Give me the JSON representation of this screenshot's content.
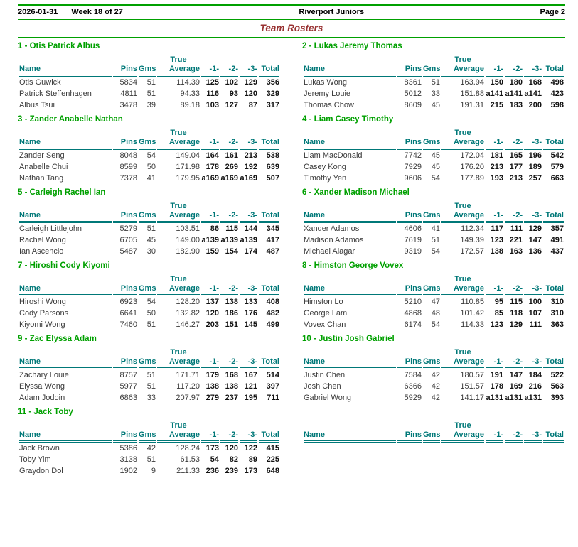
{
  "header": {
    "date": "2026-01-31",
    "week": "Week 18 of 27",
    "league": "Riverport Juniors",
    "page_label": "Page 2",
    "title": "Team Rosters"
  },
  "colors": {
    "team_green": "#00a000",
    "header_teal": "#007878",
    "title_maroon": "#993333",
    "rule_green": "#00a000",
    "score_black": "#111111",
    "body_gray": "#3a3a3a"
  },
  "columns": {
    "true_label": "True",
    "name": "Name",
    "pins": "Pins",
    "gms": "Gms",
    "average": "Average",
    "g1": "-1-",
    "g2": "-2-",
    "g3": "-3-",
    "total": "Total"
  },
  "teams": [
    {
      "title": "1 - Otis Patrick Albus",
      "players": [
        {
          "name": "Otis Guwick",
          "pins": "5834",
          "gms": "51",
          "avg": "114.39",
          "g1": "125",
          "g2": "102",
          "g3": "129",
          "total": "356"
        },
        {
          "name": "Patrick Steffenhagen",
          "pins": "4811",
          "gms": "51",
          "avg": "94.33",
          "g1": "116",
          "g2": "93",
          "g3": "120",
          "total": "329"
        },
        {
          "name": "Albus Tsui",
          "pins": "3478",
          "gms": "39",
          "avg": "89.18",
          "g1": "103",
          "g2": "127",
          "g3": "87",
          "total": "317"
        }
      ]
    },
    {
      "title": "2 - Lukas Jeremy Thomas",
      "players": [
        {
          "name": "Lukas Wong",
          "pins": "8361",
          "gms": "51",
          "avg": "163.94",
          "g1": "150",
          "g2": "180",
          "g3": "168",
          "total": "498"
        },
        {
          "name": "Jeremy Louie",
          "pins": "5012",
          "gms": "33",
          "avg": "151.88",
          "g1": "a141",
          "g2": "a141",
          "g3": "a141",
          "total": "423"
        },
        {
          "name": "Thomas Chow",
          "pins": "8609",
          "gms": "45",
          "avg": "191.31",
          "g1": "215",
          "g2": "183",
          "g3": "200",
          "total": "598"
        }
      ]
    },
    {
      "title": "3 - Zander Anabelle Nathan",
      "players": [
        {
          "name": "Zander Seng",
          "pins": "8048",
          "gms": "54",
          "avg": "149.04",
          "g1": "164",
          "g2": "161",
          "g3": "213",
          "total": "538"
        },
        {
          "name": "Anabelle Chui",
          "pins": "8599",
          "gms": "50",
          "avg": "171.98",
          "g1": "178",
          "g2": "269",
          "g3": "192",
          "total": "639"
        },
        {
          "name": "Nathan Tang",
          "pins": "7378",
          "gms": "41",
          "avg": "179.95",
          "g1": "a169",
          "g2": "a169",
          "g3": "a169",
          "total": "507"
        }
      ]
    },
    {
      "title": "4 - Liam Casey Timothy",
      "players": [
        {
          "name": "Liam MacDonald",
          "pins": "7742",
          "gms": "45",
          "avg": "172.04",
          "g1": "181",
          "g2": "165",
          "g3": "196",
          "total": "542"
        },
        {
          "name": "Casey Kong",
          "pins": "7929",
          "gms": "45",
          "avg": "176.20",
          "g1": "213",
          "g2": "177",
          "g3": "189",
          "total": "579"
        },
        {
          "name": "Timothy Yen",
          "pins": "9606",
          "gms": "54",
          "avg": "177.89",
          "g1": "193",
          "g2": "213",
          "g3": "257",
          "total": "663"
        }
      ]
    },
    {
      "title": "5 - Carleigh Rachel Ian",
      "players": [
        {
          "name": "Carleigh Littlejohn",
          "pins": "5279",
          "gms": "51",
          "avg": "103.51",
          "g1": "86",
          "g2": "115",
          "g3": "144",
          "total": "345"
        },
        {
          "name": "Rachel Wong",
          "pins": "6705",
          "gms": "45",
          "avg": "149.00",
          "g1": "a139",
          "g2": "a139",
          "g3": "a139",
          "total": "417"
        },
        {
          "name": "Ian Ascencio",
          "pins": "5487",
          "gms": "30",
          "avg": "182.90",
          "g1": "159",
          "g2": "154",
          "g3": "174",
          "total": "487"
        }
      ]
    },
    {
      "title": "6 - Xander Madison Michael",
      "players": [
        {
          "name": "Xander Adamos",
          "pins": "4606",
          "gms": "41",
          "avg": "112.34",
          "g1": "117",
          "g2": "111",
          "g3": "129",
          "total": "357"
        },
        {
          "name": "Madison Adamos",
          "pins": "7619",
          "gms": "51",
          "avg": "149.39",
          "g1": "123",
          "g2": "221",
          "g3": "147",
          "total": "491"
        },
        {
          "name": "Michael Alagar",
          "pins": "9319",
          "gms": "54",
          "avg": "172.57",
          "g1": "138",
          "g2": "163",
          "g3": "136",
          "total": "437"
        }
      ]
    },
    {
      "title": "7 - Hiroshi Cody Kiyomi",
      "players": [
        {
          "name": "Hiroshi Wong",
          "pins": "6923",
          "gms": "54",
          "avg": "128.20",
          "g1": "137",
          "g2": "138",
          "g3": "133",
          "total": "408"
        },
        {
          "name": "Cody Parsons",
          "pins": "6641",
          "gms": "50",
          "avg": "132.82",
          "g1": "120",
          "g2": "186",
          "g3": "176",
          "total": "482"
        },
        {
          "name": "Kiyomi Wong",
          "pins": "7460",
          "gms": "51",
          "avg": "146.27",
          "g1": "203",
          "g2": "151",
          "g3": "145",
          "total": "499"
        }
      ]
    },
    {
      "title": "8 - Himston George Vovex",
      "players": [
        {
          "name": "Himston Lo",
          "pins": "5210",
          "gms": "47",
          "avg": "110.85",
          "g1": "95",
          "g2": "115",
          "g3": "100",
          "total": "310"
        },
        {
          "name": "George Lam",
          "pins": "4868",
          "gms": "48",
          "avg": "101.42",
          "g1": "85",
          "g2": "118",
          "g3": "107",
          "total": "310"
        },
        {
          "name": "Vovex Chan",
          "pins": "6174",
          "gms": "54",
          "avg": "114.33",
          "g1": "123",
          "g2": "129",
          "g3": "111",
          "total": "363"
        }
      ]
    },
    {
      "title": "9 - Zac Elyssa Adam",
      "players": [
        {
          "name": "Zachary Louie",
          "pins": "8757",
          "gms": "51",
          "avg": "171.71",
          "g1": "179",
          "g2": "168",
          "g3": "167",
          "total": "514"
        },
        {
          "name": "Elyssa Wong",
          "pins": "5977",
          "gms": "51",
          "avg": "117.20",
          "g1": "138",
          "g2": "138",
          "g3": "121",
          "total": "397"
        },
        {
          "name": "Adam Jodoin",
          "pins": "6863",
          "gms": "33",
          "avg": "207.97",
          "g1": "279",
          "g2": "237",
          "g3": "195",
          "total": "711"
        }
      ]
    },
    {
      "title": "10 - Justin Josh Gabriel",
      "players": [
        {
          "name": "Justin Chen",
          "pins": "7584",
          "gms": "42",
          "avg": "180.57",
          "g1": "191",
          "g2": "147",
          "g3": "184",
          "total": "522"
        },
        {
          "name": "Josh Chen",
          "pins": "6366",
          "gms": "42",
          "avg": "151.57",
          "g1": "178",
          "g2": "169",
          "g3": "216",
          "total": "563"
        },
        {
          "name": "Gabriel Wong",
          "pins": "5929",
          "gms": "42",
          "avg": "141.17",
          "g1": "a131",
          "g2": "a131",
          "g3": "a131",
          "total": "393"
        }
      ]
    },
    {
      "title": "11 - Jack Toby",
      "players": [
        {
          "name": "Jack Brown",
          "pins": "5386",
          "gms": "42",
          "avg": "128.24",
          "g1": "173",
          "g2": "120",
          "g3": "122",
          "total": "415"
        },
        {
          "name": "Toby Yim",
          "pins": "3138",
          "gms": "51",
          "avg": "61.53",
          "g1": "54",
          "g2": "82",
          "g3": "89",
          "total": "225"
        },
        {
          "name": "Graydon Dol",
          "pins": "1902",
          "gms": "9",
          "avg": "211.33",
          "g1": "236",
          "g2": "239",
          "g3": "173",
          "total": "648"
        }
      ]
    },
    {
      "title": "",
      "players": []
    }
  ]
}
